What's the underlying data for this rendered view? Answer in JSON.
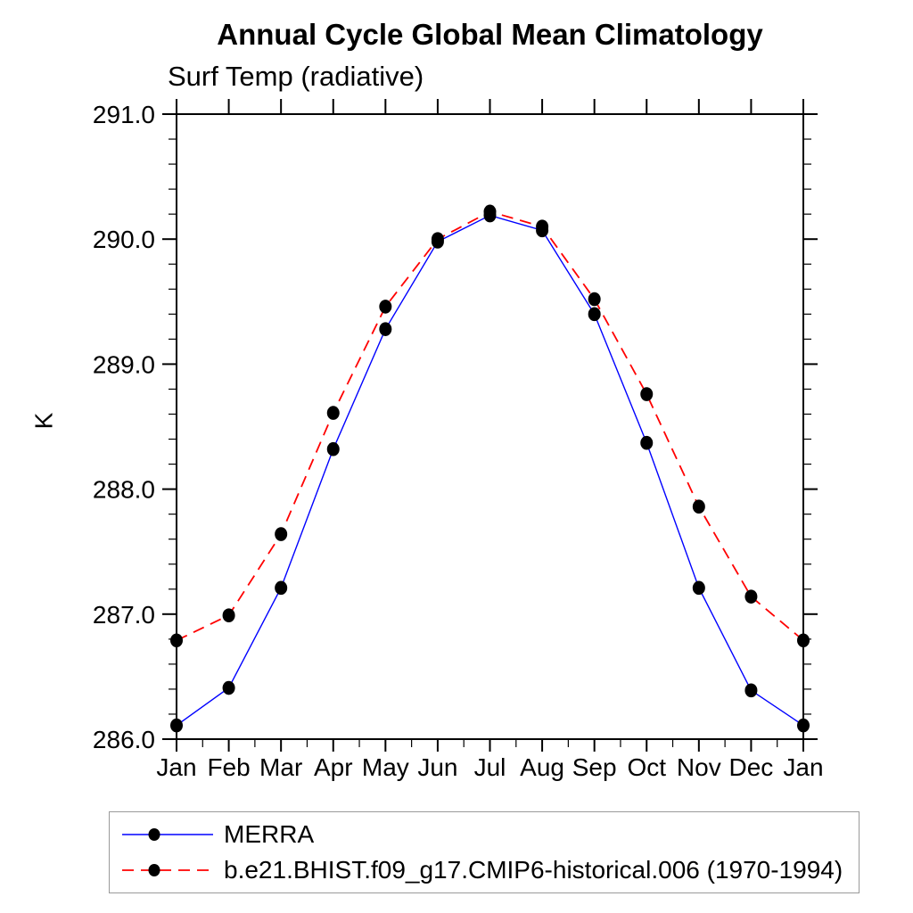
{
  "page": {
    "background": "#ffffff"
  },
  "chart_data": {
    "type": "line",
    "title": "Annual Cycle Global Mean Climatology",
    "subtitle": "Surf Temp (radiative)",
    "ylabel": "K",
    "xlabel": "",
    "categories": [
      "Jan",
      "Feb",
      "Mar",
      "Apr",
      "May",
      "Jun",
      "Jul",
      "Aug",
      "Sep",
      "Oct",
      "Nov",
      "Dec",
      "Jan"
    ],
    "ylim": [
      286.0,
      291.0
    ],
    "ytick_step": 1.0,
    "yminor_step": 0.2,
    "xminor_divisions": 2,
    "ytick_labels": [
      "286.0",
      "287.0",
      "288.0",
      "289.0",
      "290.0",
      "291.0"
    ],
    "grid": "off",
    "legend_position": "bottom-left-box",
    "marker": "filled-black-circle",
    "marker_color": "#000000",
    "axis_color": "#000000",
    "series": [
      {
        "name": "MERRA",
        "color": "#0000ff",
        "line_style": "solid",
        "values": [
          286.11,
          286.41,
          287.21,
          288.32,
          289.28,
          289.98,
          290.19,
          290.07,
          289.4,
          288.37,
          287.21,
          286.39,
          286.11
        ]
      },
      {
        "name": "b.e21.BHIST.f09_g17.CMIP6-historical.006 (1970-1994)",
        "color": "#ff0000",
        "line_style": "dashed",
        "values": [
          286.79,
          286.99,
          287.64,
          288.61,
          289.46,
          290.0,
          290.22,
          290.1,
          289.52,
          288.76,
          287.86,
          287.14,
          286.79
        ]
      }
    ]
  }
}
